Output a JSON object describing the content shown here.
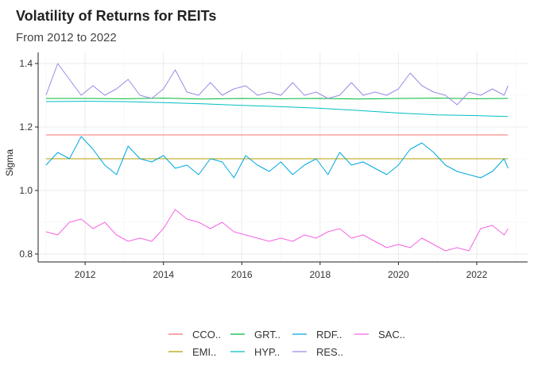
{
  "chart_data": {
    "type": "line",
    "title": "Volatility of Returns for REITs",
    "subtitle": "From 2012 to 2022",
    "xlabel": "",
    "ylabel": "Sigma",
    "xlim": [
      2010.8,
      2023.3
    ],
    "ylim": [
      0.775,
      1.435
    ],
    "x_ticks": [
      2012,
      2014,
      2016,
      2018,
      2020,
      2022
    ],
    "y_ticks": [
      0.8,
      1.0,
      1.2,
      1.4
    ],
    "x_tick_labels": [
      "2012",
      "2014",
      "2016",
      "2018",
      "2020",
      "2022"
    ],
    "y_tick_labels": [
      "0.8",
      "1.0",
      "1.2",
      "1.4"
    ],
    "grid": true,
    "legend_position": "bottom",
    "series": [
      {
        "name": "CCO..",
        "color": "#F8766D",
        "x": [
          2011.0,
          2022.8
        ],
        "values": [
          1.175,
          1.175
        ]
      },
      {
        "name": "EMI..",
        "color": "#B79F00",
        "x": [
          2011.0,
          2022.8
        ],
        "values": [
          1.1,
          1.1
        ]
      },
      {
        "name": "GRT..",
        "color": "#00BA38",
        "x": [
          2011.0,
          2012.0,
          2013.0,
          2014.0,
          2015.0,
          2016.0,
          2017.0,
          2018.0,
          2019.0,
          2020.0,
          2021.0,
          2022.0,
          2022.8
        ],
        "values": [
          1.29,
          1.29,
          1.289,
          1.291,
          1.288,
          1.29,
          1.289,
          1.29,
          1.288,
          1.29,
          1.291,
          1.289,
          1.29
        ]
      },
      {
        "name": "HYP..",
        "color": "#00BFC4",
        "x": [
          2011.0,
          2012.0,
          2013.0,
          2014.0,
          2015.0,
          2016.0,
          2017.0,
          2018.0,
          2019.0,
          2020.0,
          2021.0,
          2022.0,
          2022.8
        ],
        "values": [
          1.28,
          1.281,
          1.28,
          1.277,
          1.273,
          1.268,
          1.264,
          1.259,
          1.252,
          1.244,
          1.238,
          1.236,
          1.233
        ]
      },
      {
        "name": "RDF..",
        "color": "#00A9E0",
        "x": [
          2011.0,
          2011.3,
          2011.6,
          2011.9,
          2012.2,
          2012.5,
          2012.8,
          2013.1,
          2013.4,
          2013.7,
          2014.0,
          2014.3,
          2014.6,
          2014.9,
          2015.2,
          2015.5,
          2015.8,
          2016.1,
          2016.4,
          2016.7,
          2017.0,
          2017.3,
          2017.6,
          2017.9,
          2018.2,
          2018.5,
          2018.8,
          2019.1,
          2019.4,
          2019.7,
          2020.0,
          2020.3,
          2020.6,
          2020.9,
          2021.2,
          2021.5,
          2021.8,
          2022.1,
          2022.4,
          2022.7,
          2022.8
        ],
        "values": [
          1.08,
          1.12,
          1.1,
          1.17,
          1.13,
          1.08,
          1.05,
          1.14,
          1.1,
          1.09,
          1.11,
          1.07,
          1.08,
          1.05,
          1.1,
          1.09,
          1.04,
          1.11,
          1.08,
          1.06,
          1.09,
          1.05,
          1.08,
          1.1,
          1.05,
          1.12,
          1.08,
          1.09,
          1.07,
          1.05,
          1.08,
          1.13,
          1.15,
          1.12,
          1.08,
          1.06,
          1.05,
          1.04,
          1.06,
          1.1,
          1.07
        ]
      },
      {
        "name": "RES..",
        "color": "#9B8AE8",
        "x": [
          2011.0,
          2011.3,
          2011.6,
          2011.9,
          2012.2,
          2012.5,
          2012.8,
          2013.1,
          2013.4,
          2013.7,
          2014.0,
          2014.3,
          2014.6,
          2014.9,
          2015.2,
          2015.5,
          2015.8,
          2016.1,
          2016.4,
          2016.7,
          2017.0,
          2017.3,
          2017.6,
          2017.9,
          2018.2,
          2018.5,
          2018.8,
          2019.1,
          2019.4,
          2019.7,
          2020.0,
          2020.3,
          2020.6,
          2020.9,
          2021.2,
          2021.5,
          2021.8,
          2022.1,
          2022.4,
          2022.7,
          2022.8
        ],
        "values": [
          1.3,
          1.4,
          1.35,
          1.3,
          1.33,
          1.3,
          1.32,
          1.35,
          1.3,
          1.29,
          1.32,
          1.38,
          1.31,
          1.3,
          1.34,
          1.3,
          1.32,
          1.33,
          1.3,
          1.31,
          1.3,
          1.34,
          1.3,
          1.31,
          1.29,
          1.3,
          1.34,
          1.3,
          1.31,
          1.3,
          1.32,
          1.37,
          1.33,
          1.31,
          1.3,
          1.27,
          1.31,
          1.3,
          1.32,
          1.3,
          1.33
        ]
      },
      {
        "name": "SAC..",
        "color": "#F564E3",
        "x": [
          2011.0,
          2011.3,
          2011.6,
          2011.9,
          2012.2,
          2012.5,
          2012.8,
          2013.1,
          2013.4,
          2013.7,
          2014.0,
          2014.3,
          2014.6,
          2014.9,
          2015.2,
          2015.5,
          2015.8,
          2016.1,
          2016.4,
          2016.7,
          2017.0,
          2017.3,
          2017.6,
          2017.9,
          2018.2,
          2018.5,
          2018.8,
          2019.1,
          2019.4,
          2019.7,
          2020.0,
          2020.3,
          2020.6,
          2020.9,
          2021.2,
          2021.5,
          2021.8,
          2022.1,
          2022.4,
          2022.7,
          2022.8
        ],
        "values": [
          0.87,
          0.86,
          0.9,
          0.91,
          0.88,
          0.9,
          0.86,
          0.84,
          0.85,
          0.84,
          0.88,
          0.94,
          0.91,
          0.9,
          0.88,
          0.9,
          0.87,
          0.86,
          0.85,
          0.84,
          0.85,
          0.84,
          0.86,
          0.85,
          0.87,
          0.88,
          0.85,
          0.86,
          0.84,
          0.82,
          0.83,
          0.82,
          0.85,
          0.83,
          0.81,
          0.82,
          0.81,
          0.88,
          0.89,
          0.86,
          0.88
        ]
      }
    ]
  }
}
